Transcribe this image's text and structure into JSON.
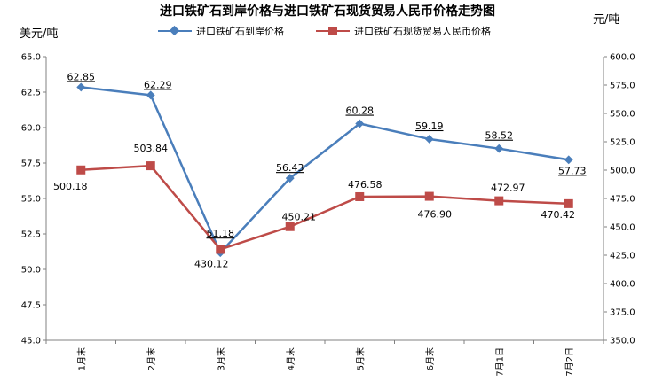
{
  "chart_data": {
    "type": "line",
    "title": "进口铁矿石到岸价格与进口铁矿石现货贸易人民币价格走势图",
    "ylabel_left": "美元/吨",
    "ylabel_right": "元/吨",
    "categories": [
      "1月末",
      "2月末",
      "3月末",
      "4月末",
      "5月末",
      "6月末",
      "7月1日",
      "7月2日"
    ],
    "ylim_left": [
      45.0,
      65.0
    ],
    "ylim_right": [
      350.0,
      600.0
    ],
    "yticks_left": [
      "45.0",
      "47.5",
      "50.0",
      "52.5",
      "55.0",
      "57.5",
      "60.0",
      "62.5",
      "65.0"
    ],
    "yticks_right": [
      "350.0",
      "375.0",
      "400.0",
      "425.0",
      "450.0",
      "475.0",
      "500.0",
      "525.0",
      "550.0",
      "575.0",
      "600.0"
    ],
    "grid": false,
    "legend_position": "top",
    "series": [
      {
        "name": "进口铁矿石到岸价格",
        "axis": "left",
        "color": "#4a7ebb",
        "marker": "diamond",
        "values": [
          62.85,
          62.29,
          51.18,
          56.43,
          60.28,
          59.19,
          58.52,
          57.73
        ],
        "labels": [
          "62.85",
          "62.29",
          "51.18",
          "56.43",
          "60.28",
          "59.19",
          "58.52",
          "57.73"
        ]
      },
      {
        "name": "进口铁矿石现货贸易人民币价格",
        "axis": "right",
        "color": "#be4b48",
        "marker": "square",
        "values": [
          500.18,
          503.84,
          430.12,
          450.21,
          476.58,
          476.9,
          472.97,
          470.42
        ],
        "labels": [
          "500.18",
          "503.84",
          "430.12",
          "450.21",
          "476.58",
          "476.90",
          "472.97",
          "470.42"
        ]
      }
    ]
  }
}
